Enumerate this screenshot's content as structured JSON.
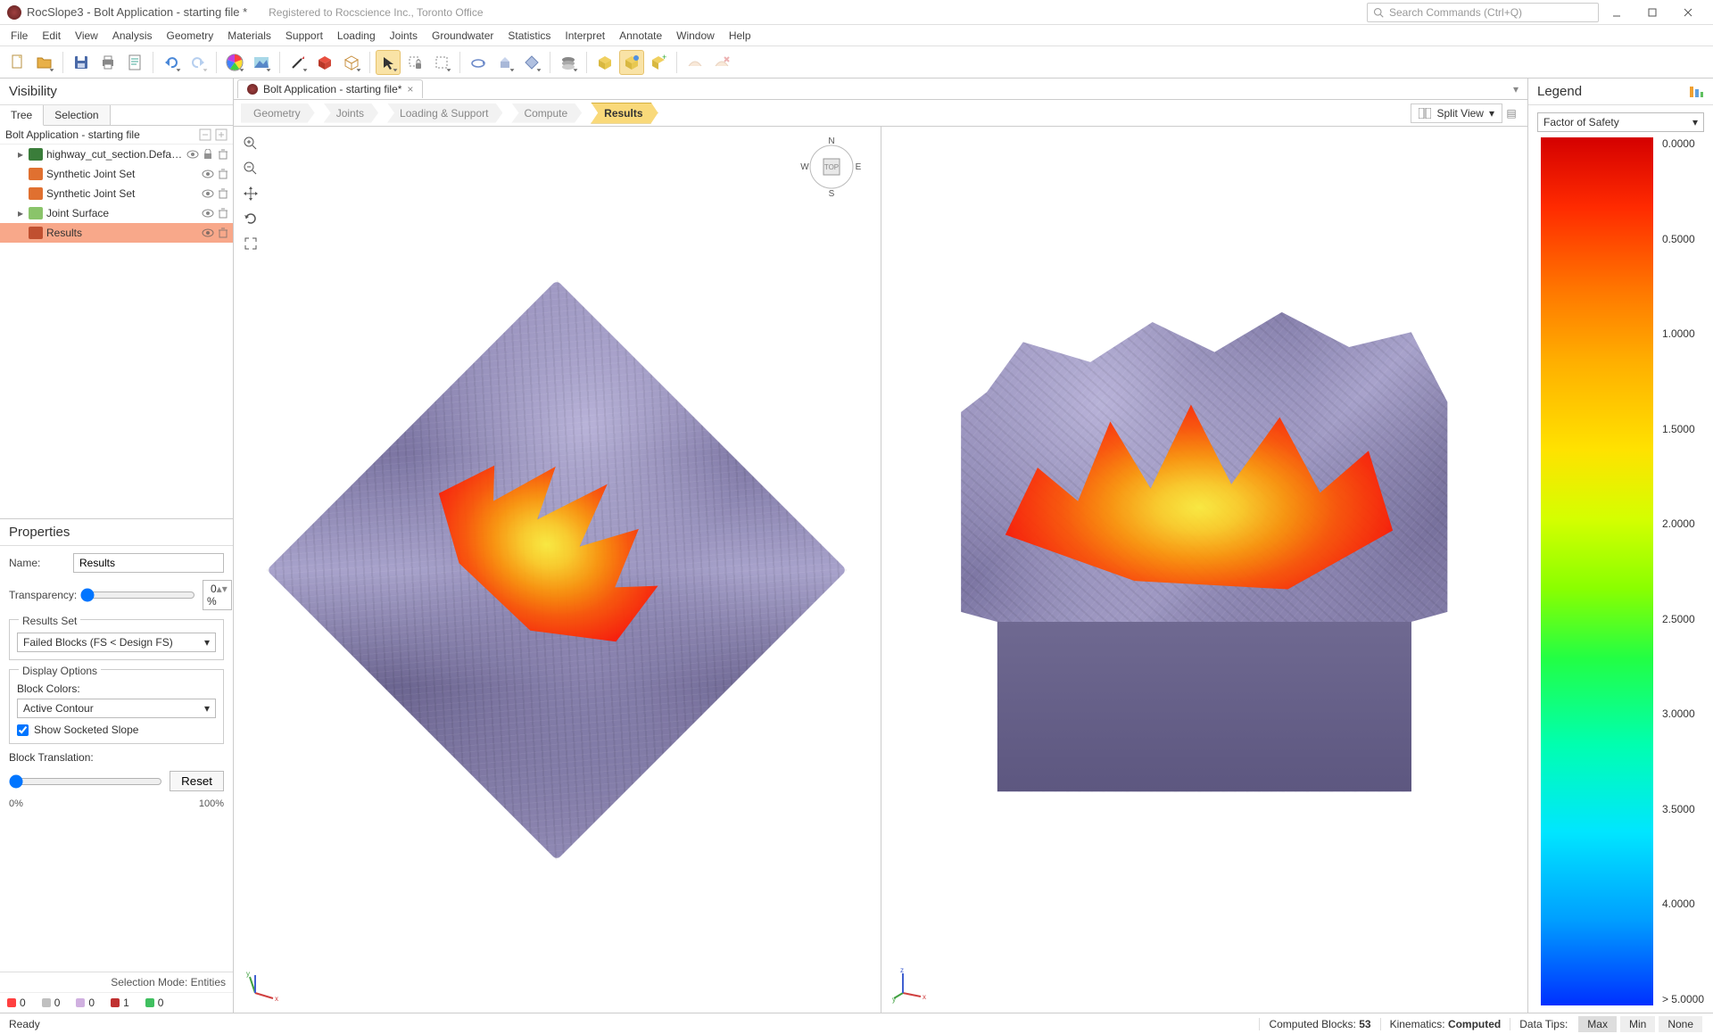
{
  "app": {
    "title": "RocSlope3 - Bolt Application - starting file *",
    "registration": "Registered to Rocscience Inc., Toronto Office",
    "search_placeholder": "Search Commands (Ctrl+Q)"
  },
  "menu": [
    "File",
    "Edit",
    "View",
    "Analysis",
    "Geometry",
    "Materials",
    "Support",
    "Loading",
    "Joints",
    "Groundwater",
    "Statistics",
    "Interpret",
    "Annotate",
    "Window",
    "Help"
  ],
  "doc_tab": {
    "label": "Bolt Application - starting file*"
  },
  "breadcrumbs": [
    {
      "label": "Geometry",
      "active": false
    },
    {
      "label": "Joints",
      "active": false
    },
    {
      "label": "Loading & Support",
      "active": false
    },
    {
      "label": "Compute",
      "active": false
    },
    {
      "label": "Results",
      "active": true
    }
  ],
  "view_mode": "Split View",
  "visibility": {
    "title": "Visibility",
    "tabs": [
      "Tree",
      "Selection"
    ],
    "active_tab": 0,
    "root": "Bolt Application - starting file",
    "nodes": [
      {
        "label": "highway_cut_section.Defa…",
        "icon": "#3a7d3a",
        "locked": true,
        "visible": true
      },
      {
        "label": "Synthetic Joint Set",
        "icon": "#e07030",
        "locked": false,
        "visible": true
      },
      {
        "label": "Synthetic Joint Set",
        "icon": "#e07030",
        "locked": false,
        "visible": true
      },
      {
        "label": "Joint Surface",
        "icon": "#8ac46a",
        "locked": false,
        "visible": true
      },
      {
        "label": "Results",
        "icon": "#c05030",
        "locked": false,
        "visible": true,
        "selected": true
      }
    ]
  },
  "properties": {
    "title": "Properties",
    "name_label": "Name:",
    "name_value": "Results",
    "transparency_label": "Transparency:",
    "transparency_value": "0 %",
    "results_set_title": "Results Set",
    "results_set_value": "Failed Blocks (FS < Design FS)",
    "display_options_title": "Display Options",
    "block_colors_label": "Block Colors:",
    "block_colors_value": "Active Contour",
    "show_socketed_label": "Show Socketed Slope",
    "show_socketed_checked": true,
    "block_translation_label": "Block Translation:",
    "reset_label": "Reset",
    "scale_min": "0%",
    "scale_max": "100%",
    "selection_mode": "Selection Mode: Entities"
  },
  "counters": [
    {
      "color": "#ff4040",
      "value": "0"
    },
    {
      "color": "#c0c0c0",
      "value": "0"
    },
    {
      "color": "#d0b0e0",
      "value": "0"
    },
    {
      "color": "#c03030",
      "value": "1"
    },
    {
      "color": "#40c060",
      "value": "0"
    }
  ],
  "legend": {
    "title": "Legend",
    "field": "Factor of Safety",
    "ticks": [
      "0.0000",
      "0.5000",
      "1.0000",
      "1.5000",
      "2.0000",
      "2.5000",
      "3.0000",
      "3.5000",
      "4.0000",
      "> 5.0000"
    ],
    "colors_top_to_bottom": [
      "#d40000",
      "#ff2a00",
      "#ff7a00",
      "#ffb000",
      "#ffe200",
      "#d4ff00",
      "#8aff00",
      "#22ff44",
      "#00ffb0",
      "#00e6ff",
      "#00a0ff",
      "#0030ff"
    ]
  },
  "status": {
    "ready": "Ready",
    "computed_blocks_label": "Computed Blocks:",
    "computed_blocks_value": "53",
    "kinematics_label": "Kinematics:",
    "kinematics_value": "Computed",
    "data_tips_label": "Data Tips:",
    "tips": [
      "Max",
      "Min",
      "None"
    ],
    "active_tip": 0
  },
  "compass": {
    "n": "N",
    "s": "S",
    "e": "E",
    "w": "W",
    "top": "TOP"
  }
}
